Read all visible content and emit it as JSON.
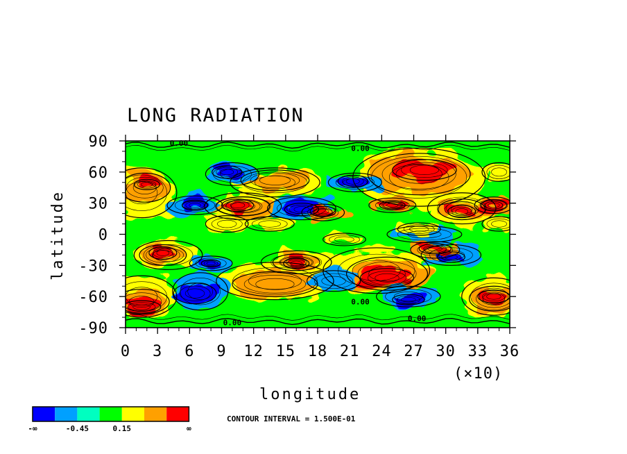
{
  "chart_data": {
    "type": "heatmap",
    "title": "LONG RADIATION",
    "xlabel": "longitude",
    "ylabel": "latitude",
    "x_multiplier_label": "(×10)",
    "xlim": [
      0,
      36
    ],
    "ylim": [
      -90,
      90
    ],
    "x_ticks": [
      "0",
      "3",
      "6",
      "9",
      "12",
      "15",
      "18",
      "21",
      "24",
      "27",
      "30",
      "33",
      "36"
    ],
    "y_ticks": [
      "90",
      "60",
      "30",
      "0",
      "-30",
      "-60",
      "-90"
    ],
    "grid": false,
    "contour_interval_text": "CONTOUR INTERVAL = 1.500E-01",
    "contour_labels": [
      {
        "text": "0.00",
        "lon": 5,
        "lat": 88
      },
      {
        "text": "0.00",
        "lon": 22,
        "lat": 83
      },
      {
        "text": "0.00",
        "lon": 10,
        "lat": -85
      },
      {
        "text": "0.00",
        "lon": 22,
        "lat": -65
      },
      {
        "text": "0.00",
        "lon": 27.3,
        "lat": -81
      }
    ],
    "legend": {
      "placement": "bottom-left",
      "colors": [
        "#0000ff",
        "#00a0ff",
        "#00ffc0",
        "#00ff00",
        "#ffff00",
        "#ffa000",
        "#ff0000"
      ],
      "labels": [
        "-∞",
        "-0.45",
        "0.15",
        "∞"
      ]
    },
    "regions": [
      {
        "level": 1,
        "lon": 7,
        "lat": -55,
        "rx": 2.6,
        "ry": 18
      },
      {
        "level": 0,
        "lon": 6.5,
        "lat": -57,
        "rx": 2.0,
        "ry": 10
      },
      {
        "level": 1,
        "lon": 10,
        "lat": 58,
        "rx": 2.5,
        "ry": 11
      },
      {
        "level": 0,
        "lon": 9.5,
        "lat": 60,
        "rx": 1.4,
        "ry": 6
      },
      {
        "level": 1,
        "lon": 21.5,
        "lat": 50,
        "rx": 2.5,
        "ry": 9
      },
      {
        "level": 0,
        "lon": 21.3,
        "lat": 51,
        "rx": 1.4,
        "ry": 6
      },
      {
        "level": 1,
        "lon": 16.5,
        "lat": 25,
        "rx": 3.2,
        "ry": 11
      },
      {
        "level": 0,
        "lon": 16.5,
        "lat": 24,
        "rx": 1.6,
        "ry": 6
      },
      {
        "level": 1,
        "lon": 6.5,
        "lat": 28,
        "rx": 2.6,
        "ry": 9
      },
      {
        "level": 0,
        "lon": 6.5,
        "lat": 28,
        "rx": 1.2,
        "ry": 5
      },
      {
        "level": 1,
        "lon": 28,
        "lat": 0,
        "rx": 3.5,
        "ry": 8
      },
      {
        "level": 1,
        "lon": 30.5,
        "lat": -20,
        "rx": 2.8,
        "ry": 10
      },
      {
        "level": 0,
        "lon": 30.5,
        "lat": -22,
        "rx": 1.3,
        "ry": 5
      },
      {
        "level": 1,
        "lon": 26.5,
        "lat": -60,
        "rx": 3.0,
        "ry": 10
      },
      {
        "level": 0,
        "lon": 26.5,
        "lat": -63,
        "rx": 1.5,
        "ry": 5
      },
      {
        "level": 1,
        "lon": 8,
        "lat": -28,
        "rx": 2.0,
        "ry": 7
      },
      {
        "level": 0,
        "lon": 8,
        "lat": -28,
        "rx": 0.9,
        "ry": 3.5
      },
      {
        "level": 1,
        "lon": 19.5,
        "lat": -45,
        "rx": 2.5,
        "ry": 10
      },
      {
        "level": 6,
        "lon": 28,
        "lat": 62,
        "rx": 3.0,
        "ry": 10
      },
      {
        "level": 5,
        "lon": 27.5,
        "lat": 58,
        "rx": 4.8,
        "ry": 20
      },
      {
        "level": 4,
        "lon": 27.5,
        "lat": 55,
        "rx": 6.2,
        "ry": 28
      },
      {
        "level": 6,
        "lon": 24.5,
        "lat": -42,
        "rx": 2.5,
        "ry": 9
      },
      {
        "level": 5,
        "lon": 24.5,
        "lat": -38,
        "rx": 3.8,
        "ry": 16
      },
      {
        "level": 4,
        "lon": 23.5,
        "lat": -35,
        "rx": 5.0,
        "ry": 22
      },
      {
        "level": 5,
        "lon": 14,
        "lat": -48,
        "rx": 4.0,
        "ry": 12
      },
      {
        "level": 4,
        "lon": 14,
        "lat": -45,
        "rx": 5.5,
        "ry": 18
      },
      {
        "level": 5,
        "lon": 14,
        "lat": 52,
        "rx": 3.2,
        "ry": 10
      },
      {
        "level": 4,
        "lon": 14,
        "lat": 50,
        "rx": 4.2,
        "ry": 14
      },
      {
        "level": 6,
        "lon": 2,
        "lat": 48,
        "rx": 1.2,
        "ry": 5
      },
      {
        "level": 5,
        "lon": 1.8,
        "lat": 45,
        "rx": 2.4,
        "ry": 14
      },
      {
        "level": 4,
        "lon": 1.5,
        "lat": 40,
        "rx": 3.3,
        "ry": 24
      },
      {
        "level": 6,
        "lon": 1.5,
        "lat": -70,
        "rx": 1.8,
        "ry": 6
      },
      {
        "level": 5,
        "lon": 1.5,
        "lat": -65,
        "rx": 2.6,
        "ry": 12
      },
      {
        "level": 4,
        "lon": 1.5,
        "lat": -60,
        "rx": 3.3,
        "ry": 20
      },
      {
        "level": 6,
        "lon": 34.5,
        "lat": -60,
        "rx": 1.5,
        "ry": 6
      },
      {
        "level": 5,
        "lon": 34.5,
        "lat": -62,
        "rx": 2.3,
        "ry": 12
      },
      {
        "level": 4,
        "lon": 34.5,
        "lat": -60,
        "rx": 3.0,
        "ry": 18
      },
      {
        "level": 6,
        "lon": 3.5,
        "lat": -18,
        "rx": 1.3,
        "ry": 6
      },
      {
        "level": 5,
        "lon": 3.5,
        "lat": -20,
        "rx": 2.2,
        "ry": 10
      },
      {
        "level": 4,
        "lon": 4,
        "lat": -20,
        "rx": 3.2,
        "ry": 14
      },
      {
        "level": 6,
        "lon": 10.5,
        "lat": 28,
        "rx": 1.5,
        "ry": 6
      },
      {
        "level": 5,
        "lon": 11,
        "lat": 27,
        "rx": 2.5,
        "ry": 9
      },
      {
        "level": 4,
        "lon": 11,
        "lat": 27,
        "rx": 3.6,
        "ry": 13
      },
      {
        "level": 6,
        "lon": 31.5,
        "lat": 22,
        "rx": 1.3,
        "ry": 6
      },
      {
        "level": 5,
        "lon": 31.5,
        "lat": 24,
        "rx": 2.2,
        "ry": 10
      },
      {
        "level": 4,
        "lon": 31.5,
        "lat": 25,
        "rx": 3.2,
        "ry": 15
      },
      {
        "level": 6,
        "lon": 34.5,
        "lat": 28,
        "rx": 1.2,
        "ry": 5
      },
      {
        "level": 5,
        "lon": 34.5,
        "lat": 28,
        "rx": 1.8,
        "ry": 8
      },
      {
        "level": 6,
        "lon": 18.5,
        "lat": 22,
        "rx": 1.2,
        "ry": 5
      },
      {
        "level": 5,
        "lon": 18.5,
        "lat": 21,
        "rx": 2.0,
        "ry": 8
      },
      {
        "level": 6,
        "lon": 16,
        "lat": -28,
        "rx": 1.2,
        "ry": 5
      },
      {
        "level": 5,
        "lon": 16,
        "lat": -27,
        "rx": 2.2,
        "ry": 8
      },
      {
        "level": 4,
        "lon": 16,
        "lat": -27,
        "rx": 3.3,
        "ry": 11
      },
      {
        "level": 6,
        "lon": 29,
        "lat": -14,
        "rx": 1.5,
        "ry": 5
      },
      {
        "level": 5,
        "lon": 29,
        "lat": -15,
        "rx": 2.3,
        "ry": 8
      },
      {
        "level": 6,
        "lon": 25,
        "lat": 28,
        "rx": 1.2,
        "ry": 4
      },
      {
        "level": 5,
        "lon": 25,
        "lat": 28,
        "rx": 2.2,
        "ry": 7
      },
      {
        "level": 4,
        "lon": 13.5,
        "lat": 10,
        "rx": 2.3,
        "ry": 7
      },
      {
        "level": 4,
        "lon": 9.5,
        "lat": 10,
        "rx": 2.0,
        "ry": 8
      },
      {
        "level": 4,
        "lon": 35,
        "lat": 60,
        "rx": 1.6,
        "ry": 9
      },
      {
        "level": 4,
        "lon": 35,
        "lat": 10,
        "rx": 1.6,
        "ry": 7
      },
      {
        "level": 4,
        "lon": 27.5,
        "lat": 5,
        "rx": 2.0,
        "ry": 6
      },
      {
        "level": 4,
        "lon": 20.5,
        "lat": -5,
        "rx": 2.0,
        "ry": 6
      }
    ]
  }
}
